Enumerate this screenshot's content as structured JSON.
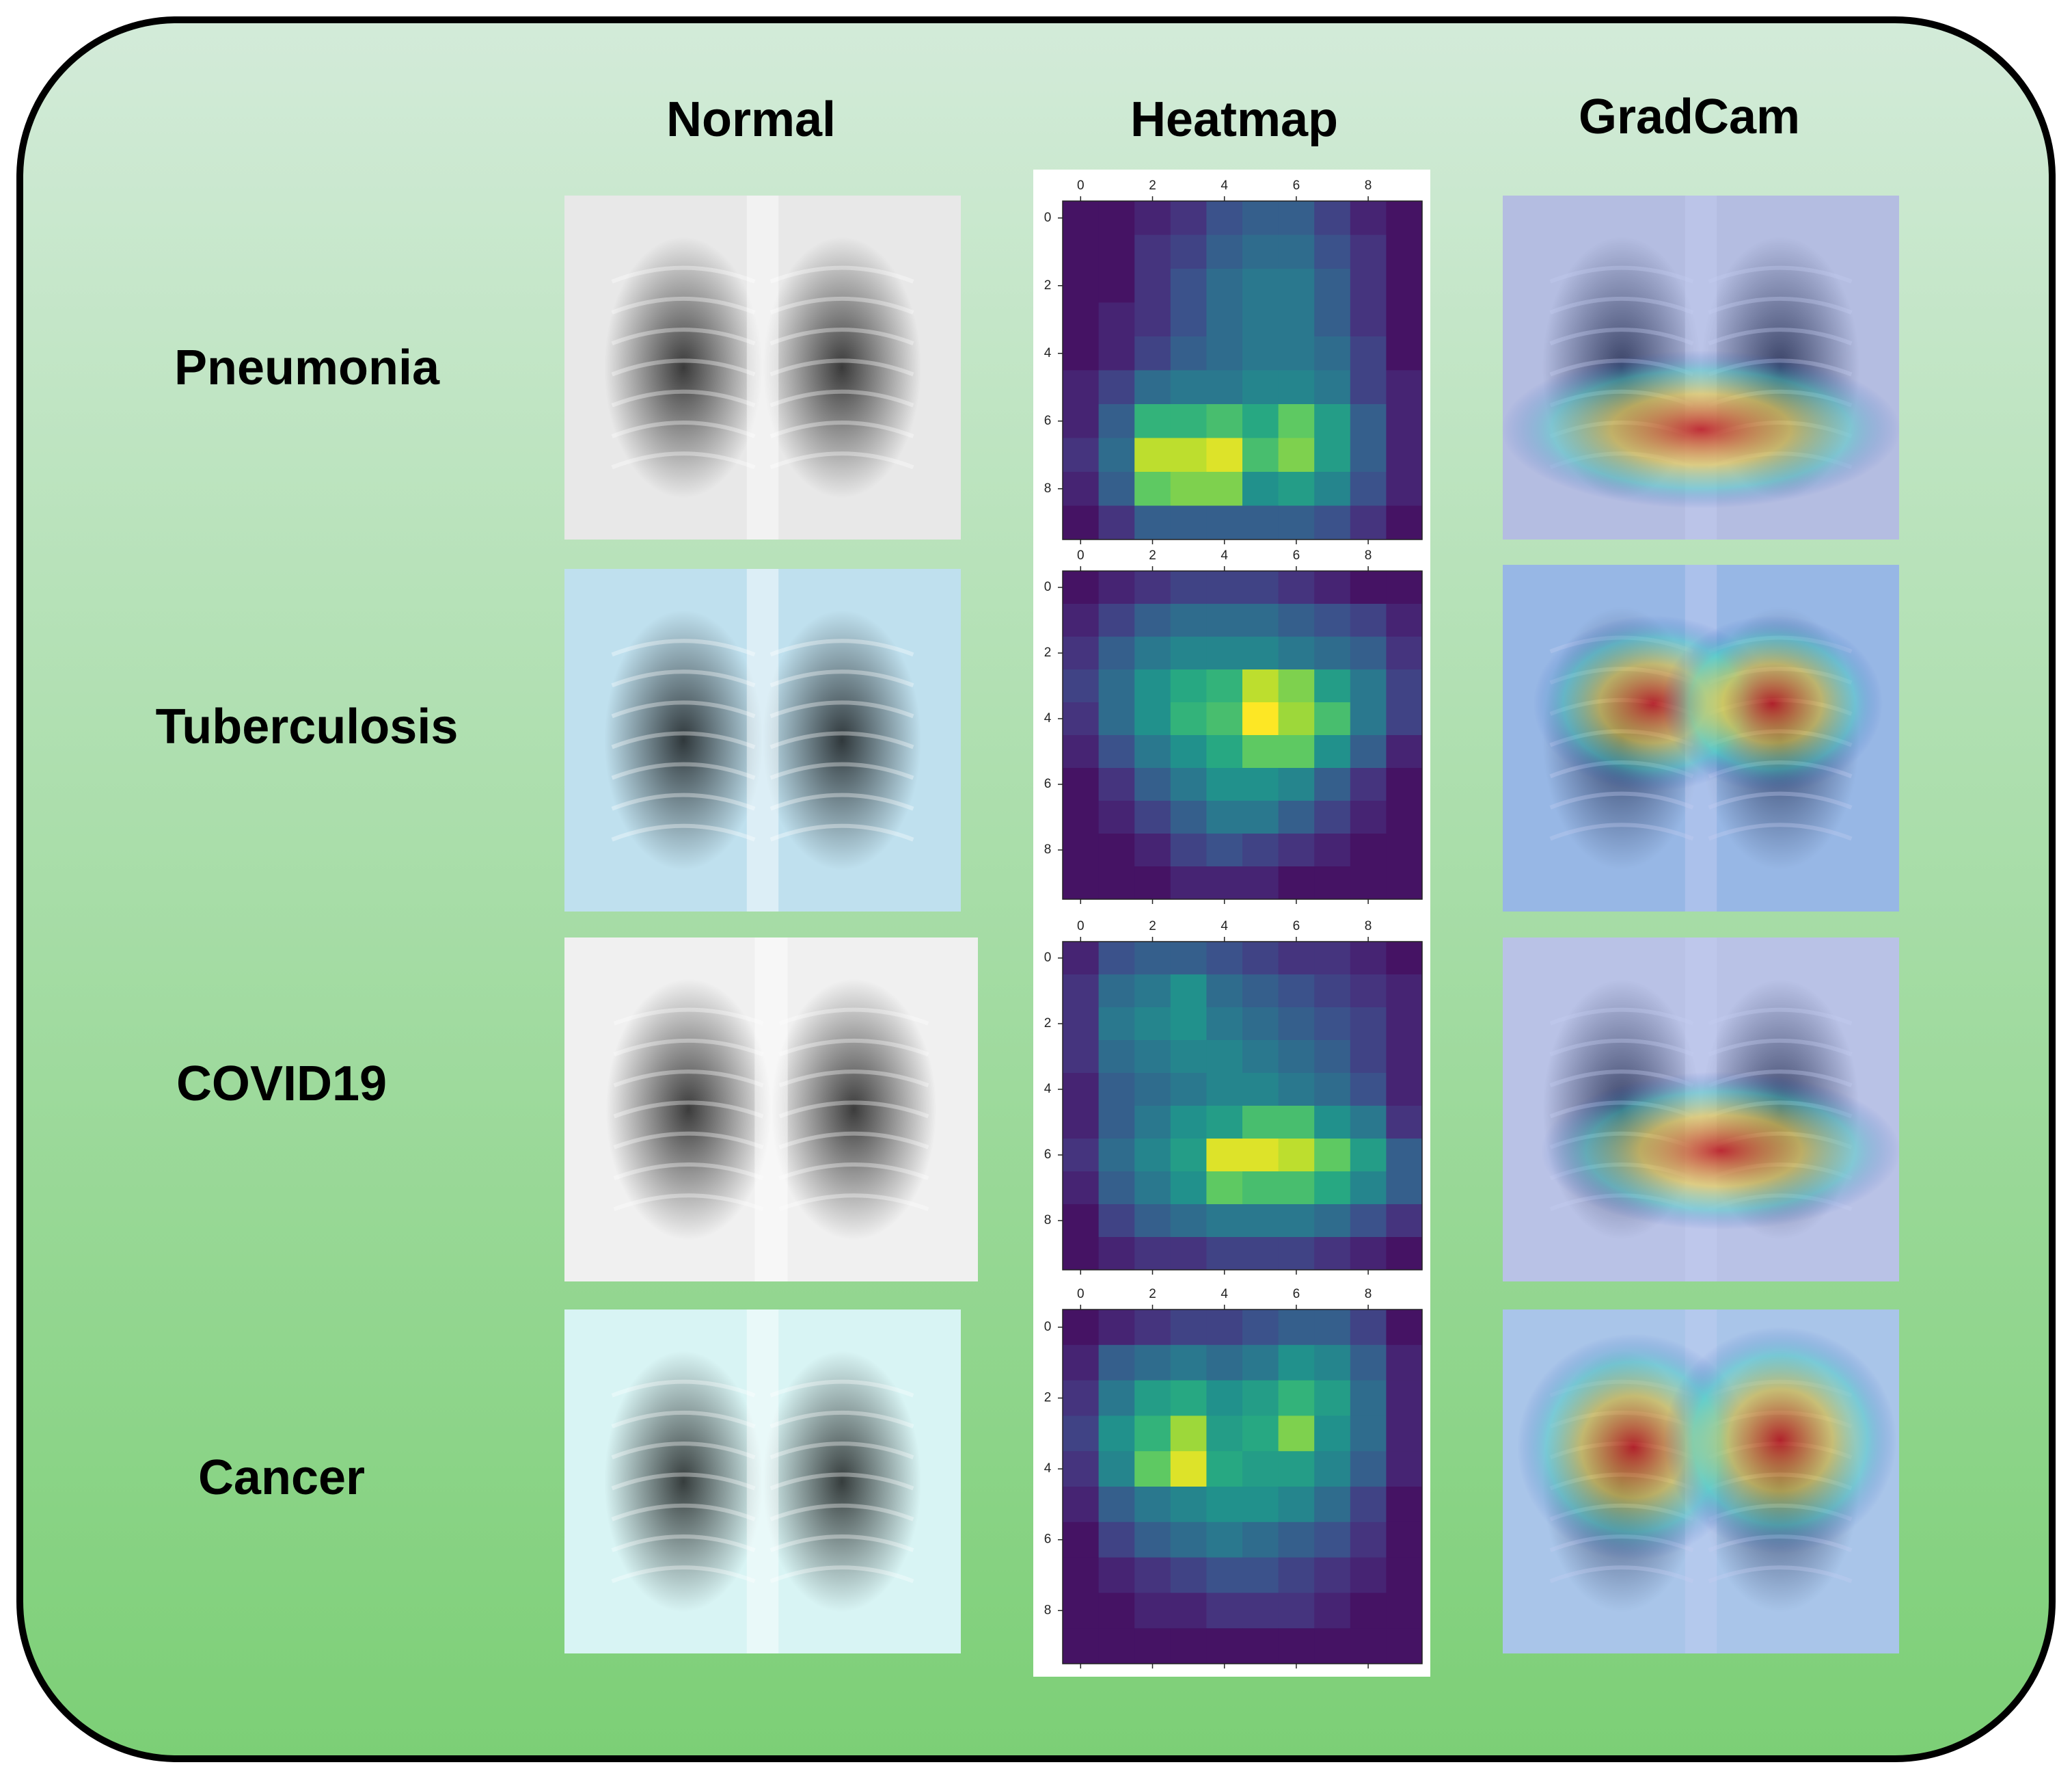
{
  "column_headers": [
    "Normal",
    "Heatmap",
    "GradCam"
  ],
  "row_labels": [
    "Pneumonia",
    "Tuberculosis",
    "COVID19",
    "Cancer"
  ],
  "chart_data": [
    {
      "type": "heatmap",
      "colormap": "viridis",
      "xlim": [
        -0.5,
        9.5
      ],
      "ylim": [
        9.5,
        -0.5
      ],
      "xticks": [
        0,
        2,
        4,
        6,
        8
      ],
      "yticks": [
        0,
        2,
        4,
        6,
        8
      ],
      "values": [
        [
          0.05,
          0.05,
          0.1,
          0.15,
          0.25,
          0.3,
          0.3,
          0.2,
          0.1,
          0.05
        ],
        [
          0.05,
          0.05,
          0.15,
          0.2,
          0.3,
          0.35,
          0.35,
          0.25,
          0.15,
          0.05
        ],
        [
          0.05,
          0.05,
          0.15,
          0.25,
          0.35,
          0.4,
          0.4,
          0.3,
          0.15,
          0.05
        ],
        [
          0.05,
          0.1,
          0.15,
          0.25,
          0.35,
          0.4,
          0.4,
          0.3,
          0.15,
          0.05
        ],
        [
          0.05,
          0.1,
          0.2,
          0.3,
          0.35,
          0.4,
          0.4,
          0.35,
          0.2,
          0.05
        ],
        [
          0.1,
          0.2,
          0.35,
          0.4,
          0.4,
          0.45,
          0.45,
          0.4,
          0.2,
          0.1
        ],
        [
          0.1,
          0.3,
          0.65,
          0.65,
          0.7,
          0.6,
          0.75,
          0.55,
          0.3,
          0.1
        ],
        [
          0.15,
          0.35,
          0.9,
          0.9,
          0.95,
          0.7,
          0.8,
          0.55,
          0.3,
          0.1
        ],
        [
          0.1,
          0.3,
          0.75,
          0.8,
          0.8,
          0.5,
          0.55,
          0.45,
          0.25,
          0.1
        ],
        [
          0.05,
          0.15,
          0.3,
          0.3,
          0.3,
          0.3,
          0.3,
          0.25,
          0.15,
          0.05
        ]
      ]
    },
    {
      "type": "heatmap",
      "colormap": "viridis",
      "xlim": [
        -0.5,
        9.5
      ],
      "ylim": [
        9.5,
        -0.5
      ],
      "xticks": [
        0,
        2,
        4,
        6,
        8
      ],
      "yticks": [
        0,
        2,
        4,
        6,
        8
      ],
      "values": [
        [
          0.05,
          0.1,
          0.15,
          0.2,
          0.2,
          0.2,
          0.15,
          0.1,
          0.05,
          0.05
        ],
        [
          0.1,
          0.2,
          0.3,
          0.35,
          0.35,
          0.35,
          0.3,
          0.25,
          0.2,
          0.1
        ],
        [
          0.15,
          0.3,
          0.4,
          0.45,
          0.45,
          0.45,
          0.4,
          0.35,
          0.3,
          0.15
        ],
        [
          0.2,
          0.35,
          0.5,
          0.6,
          0.65,
          0.9,
          0.8,
          0.55,
          0.4,
          0.2
        ],
        [
          0.15,
          0.35,
          0.5,
          0.65,
          0.7,
          1.0,
          0.85,
          0.7,
          0.4,
          0.2
        ],
        [
          0.1,
          0.25,
          0.4,
          0.5,
          0.6,
          0.75,
          0.75,
          0.5,
          0.3,
          0.1
        ],
        [
          0.05,
          0.15,
          0.3,
          0.4,
          0.5,
          0.5,
          0.45,
          0.3,
          0.15,
          0.05
        ],
        [
          0.05,
          0.1,
          0.2,
          0.3,
          0.4,
          0.4,
          0.3,
          0.2,
          0.1,
          0.05
        ],
        [
          0.05,
          0.05,
          0.1,
          0.2,
          0.25,
          0.2,
          0.15,
          0.1,
          0.05,
          0.05
        ],
        [
          0.05,
          0.05,
          0.05,
          0.1,
          0.1,
          0.1,
          0.05,
          0.05,
          0.05,
          0.05
        ]
      ]
    },
    {
      "type": "heatmap",
      "colormap": "viridis",
      "xlim": [
        -0.5,
        9.5
      ],
      "ylim": [
        9.5,
        -0.5
      ],
      "xticks": [
        0,
        2,
        4,
        6,
        8
      ],
      "yticks": [
        0,
        2,
        4,
        6,
        8
      ],
      "values": [
        [
          0.1,
          0.25,
          0.3,
          0.3,
          0.25,
          0.2,
          0.15,
          0.15,
          0.1,
          0.05
        ],
        [
          0.15,
          0.35,
          0.4,
          0.5,
          0.35,
          0.3,
          0.25,
          0.2,
          0.15,
          0.1
        ],
        [
          0.15,
          0.4,
          0.45,
          0.5,
          0.4,
          0.35,
          0.3,
          0.25,
          0.2,
          0.1
        ],
        [
          0.15,
          0.35,
          0.4,
          0.45,
          0.45,
          0.4,
          0.35,
          0.3,
          0.2,
          0.1
        ],
        [
          0.1,
          0.3,
          0.35,
          0.4,
          0.45,
          0.45,
          0.4,
          0.35,
          0.25,
          0.1
        ],
        [
          0.1,
          0.3,
          0.4,
          0.5,
          0.55,
          0.7,
          0.7,
          0.5,
          0.4,
          0.15
        ],
        [
          0.15,
          0.35,
          0.45,
          0.55,
          0.95,
          0.95,
          0.9,
          0.75,
          0.55,
          0.3
        ],
        [
          0.1,
          0.3,
          0.4,
          0.5,
          0.75,
          0.7,
          0.7,
          0.6,
          0.45,
          0.3
        ],
        [
          0.05,
          0.2,
          0.3,
          0.35,
          0.4,
          0.4,
          0.4,
          0.35,
          0.25,
          0.15
        ],
        [
          0.05,
          0.1,
          0.15,
          0.15,
          0.2,
          0.2,
          0.2,
          0.15,
          0.1,
          0.05
        ]
      ]
    },
    {
      "type": "heatmap",
      "colormap": "viridis",
      "xlim": [
        -0.5,
        9.5
      ],
      "ylim": [
        9.5,
        -0.5
      ],
      "xticks": [
        0,
        2,
        4,
        6,
        8
      ],
      "yticks": [
        0,
        2,
        4,
        6,
        8
      ],
      "values": [
        [
          0.05,
          0.1,
          0.15,
          0.2,
          0.2,
          0.25,
          0.3,
          0.3,
          0.2,
          0.05
        ],
        [
          0.1,
          0.3,
          0.35,
          0.4,
          0.35,
          0.4,
          0.5,
          0.45,
          0.3,
          0.1
        ],
        [
          0.15,
          0.4,
          0.55,
          0.6,
          0.5,
          0.55,
          0.65,
          0.55,
          0.35,
          0.1
        ],
        [
          0.2,
          0.5,
          0.65,
          0.85,
          0.55,
          0.6,
          0.8,
          0.5,
          0.35,
          0.1
        ],
        [
          0.15,
          0.45,
          0.75,
          0.95,
          0.6,
          0.55,
          0.55,
          0.45,
          0.3,
          0.1
        ],
        [
          0.1,
          0.3,
          0.4,
          0.45,
          0.5,
          0.5,
          0.45,
          0.35,
          0.2,
          0.05
        ],
        [
          0.05,
          0.2,
          0.3,
          0.35,
          0.4,
          0.35,
          0.3,
          0.25,
          0.15,
          0.05
        ],
        [
          0.05,
          0.1,
          0.15,
          0.2,
          0.25,
          0.25,
          0.2,
          0.15,
          0.1,
          0.05
        ],
        [
          0.05,
          0.05,
          0.1,
          0.1,
          0.15,
          0.15,
          0.15,
          0.1,
          0.05,
          0.05
        ],
        [
          0.05,
          0.05,
          0.05,
          0.05,
          0.05,
          0.05,
          0.05,
          0.05,
          0.05,
          0.05
        ]
      ]
    }
  ]
}
